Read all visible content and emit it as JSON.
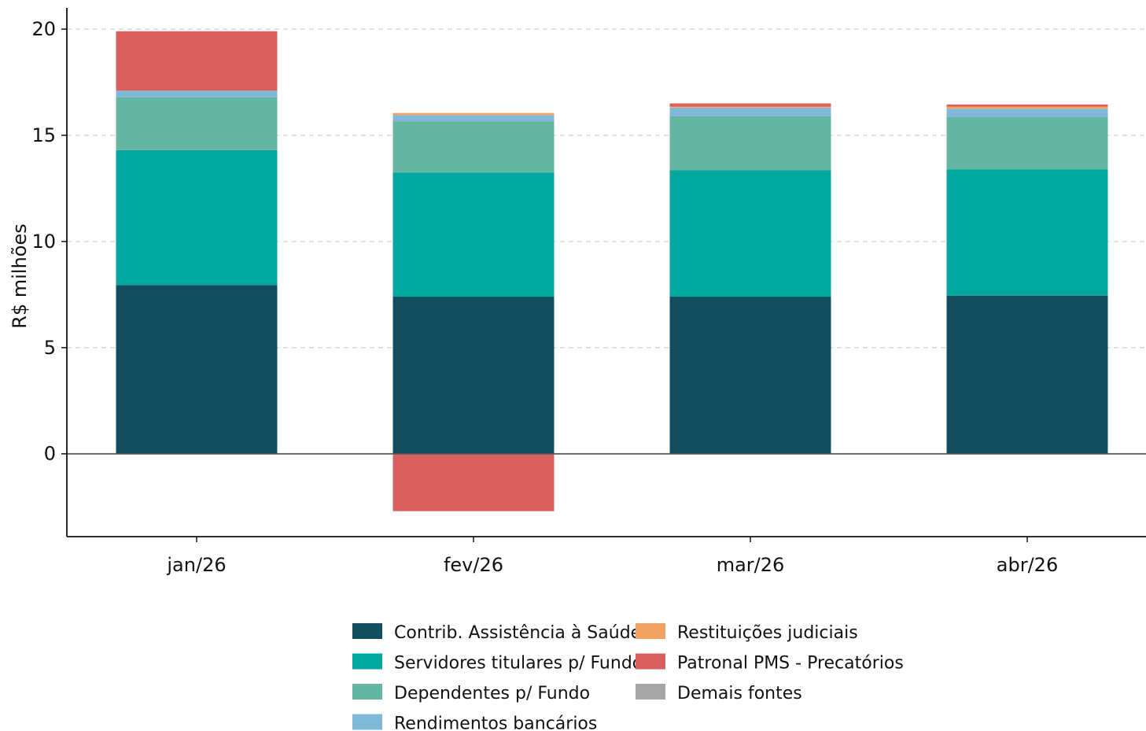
{
  "chart_data": {
    "type": "bar",
    "stacked": true,
    "title": "",
    "xlabel": "",
    "ylabel": "R$ milhões",
    "ylim": [
      -3.9,
      21.0
    ],
    "yticks": [
      0,
      5,
      10,
      15,
      20
    ],
    "grid": "y-dashed",
    "legend_position": "bottom-center",
    "categories": [
      "jan/26",
      "fev/26",
      "mar/26",
      "abr/26"
    ],
    "series": [
      {
        "name": "Contrib. Assistência à Saúde",
        "color": "#134e5e",
        "values": [
          7.95,
          7.4,
          7.4,
          7.45
        ]
      },
      {
        "name": "Servidores titulares p/ Fundo",
        "color": "#00a79d",
        "values": [
          6.35,
          5.85,
          5.95,
          5.95
        ]
      },
      {
        "name": "Dependentes p/ Fundo",
        "color": "#64b5a2",
        "values": [
          2.5,
          2.4,
          2.55,
          2.45
        ]
      },
      {
        "name": "Rendimentos bancários",
        "color": "#7fb8d8",
        "values": [
          0.3,
          0.3,
          0.4,
          0.4
        ]
      },
      {
        "name": "Restituições judiciais",
        "color": "#f4a261",
        "values": [
          0.0,
          0.1,
          0.05,
          0.1
        ]
      },
      {
        "name": "Patronal PMS - Precatórios",
        "color": "#d95f5f",
        "values": [
          2.8,
          -2.7,
          0.15,
          0.1
        ]
      },
      {
        "name": "Demais fontes",
        "color": "#a6a6a6",
        "values": [
          0.0,
          0.0,
          0.0,
          0.0
        ]
      }
    ]
  }
}
